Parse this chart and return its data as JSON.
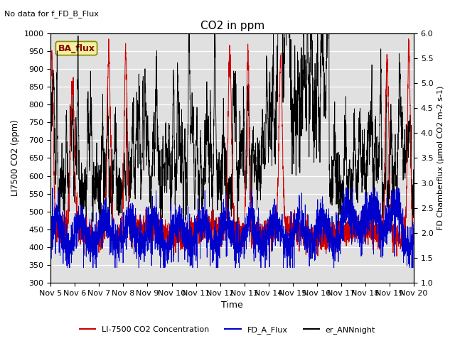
{
  "title": "CO2 in ppm",
  "top_left_text": "No data for f_FD_B_Flux",
  "legend_box_text": "BA_flux",
  "xlabel": "Time",
  "ylabel_left": "LI7500 CO2 (ppm)",
  "ylabel_right": "FD Chamberflux (μmol CO2 m-2 s-1)",
  "ylim_left": [
    300,
    1000
  ],
  "ylim_right": [
    1.0,
    6.0
  ],
  "yticks_left": [
    300,
    350,
    400,
    450,
    500,
    550,
    600,
    650,
    700,
    750,
    800,
    850,
    900,
    950,
    1000
  ],
  "yticks_right": [
    1.0,
    1.5,
    2.0,
    2.5,
    3.0,
    3.5,
    4.0,
    4.5,
    5.0,
    5.5,
    6.0
  ],
  "xtick_labels": [
    "Nov 5",
    "Nov 6",
    "Nov 7",
    "Nov 8",
    "Nov 9",
    "Nov 10",
    "Nov 11",
    "Nov 12",
    "Nov 13",
    "Nov 14",
    "Nov 15",
    "Nov 16",
    "Nov 17",
    "Nov 18",
    "Nov 19",
    "Nov 20"
  ],
  "color_red": "#cc0000",
  "color_blue": "#0000cc",
  "color_black": "#000000",
  "legend_labels": [
    "LI-7500 CO2 Concentration",
    "FD_A_Flux",
    "er_ANNnight"
  ],
  "background_color": "#e0e0e0",
  "n_points": 2880,
  "seed": 42,
  "figsize": [
    6.4,
    4.8
  ],
  "dpi": 100
}
